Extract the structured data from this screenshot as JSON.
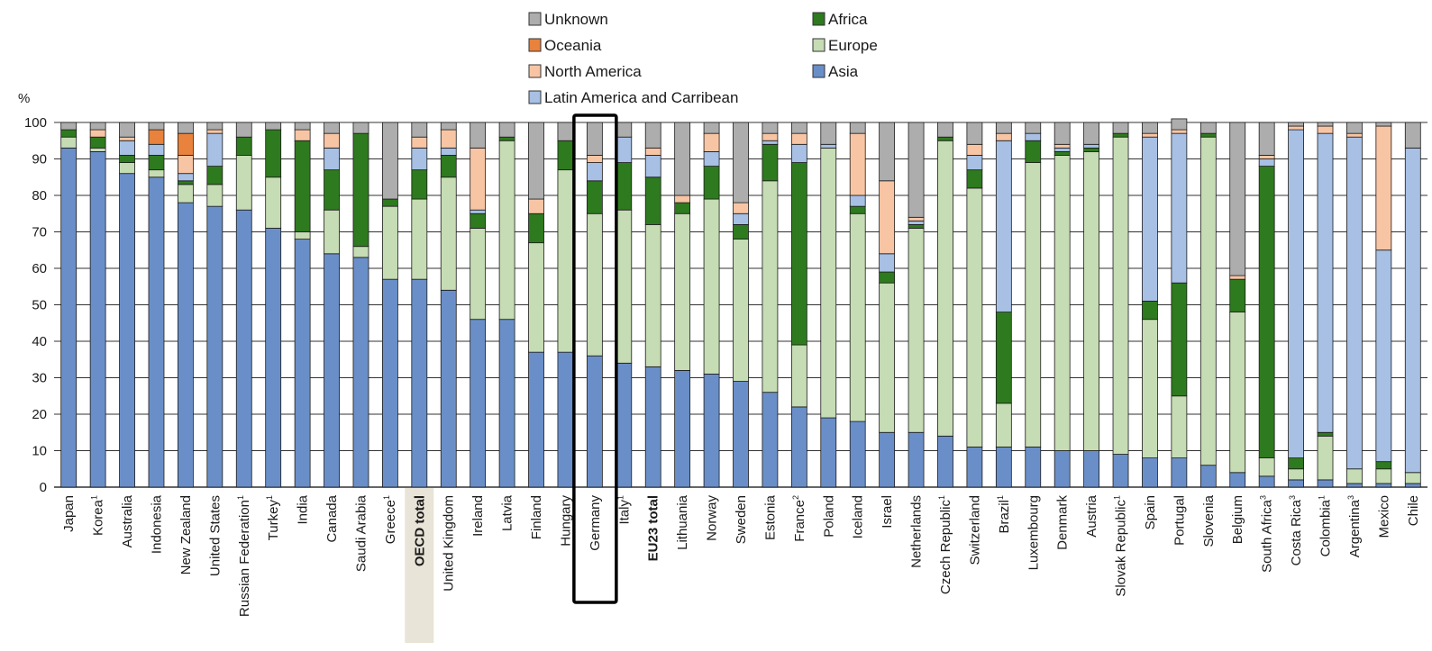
{
  "chart_data": {
    "type": "bar",
    "stacked": true,
    "yunit": "%",
    "ylim": [
      0,
      100
    ],
    "yticks": [
      0,
      10,
      20,
      30,
      40,
      50,
      60,
      70,
      80,
      90,
      100
    ],
    "grid": true,
    "legend_placement": "top-center",
    "highlighted_category": "Germany",
    "shaded_category": "OECD total",
    "categories": [
      {
        "label": "Japan",
        "sup": ""
      },
      {
        "label": "Korea",
        "sup": "1"
      },
      {
        "label": "Australia",
        "sup": ""
      },
      {
        "label": "Indonesia",
        "sup": ""
      },
      {
        "label": "New Zealand",
        "sup": ""
      },
      {
        "label": "United States",
        "sup": ""
      },
      {
        "label": "Russian Federation",
        "sup": "1"
      },
      {
        "label": "Turkey",
        "sup": "1"
      },
      {
        "label": "India",
        "sup": ""
      },
      {
        "label": "Canada",
        "sup": ""
      },
      {
        "label": "Saudi Arabia",
        "sup": ""
      },
      {
        "label": "Greece",
        "sup": "1"
      },
      {
        "label": "OECD total",
        "sup": "",
        "bold": true
      },
      {
        "label": "United Kingdom",
        "sup": ""
      },
      {
        "label": "Ireland",
        "sup": ""
      },
      {
        "label": "Latvia",
        "sup": ""
      },
      {
        "label": "Finland",
        "sup": ""
      },
      {
        "label": "Hungary",
        "sup": ""
      },
      {
        "label": "Germany",
        "sup": ""
      },
      {
        "label": "Italy",
        "sup": "1"
      },
      {
        "label": "EU23 total",
        "sup": "",
        "bold": true
      },
      {
        "label": "Lithuania",
        "sup": ""
      },
      {
        "label": "Norway",
        "sup": ""
      },
      {
        "label": "Sweden",
        "sup": ""
      },
      {
        "label": "Estonia",
        "sup": ""
      },
      {
        "label": "France",
        "sup": "2"
      },
      {
        "label": "Poland",
        "sup": ""
      },
      {
        "label": "Iceland",
        "sup": ""
      },
      {
        "label": "Israel",
        "sup": ""
      },
      {
        "label": "Netherlands",
        "sup": ""
      },
      {
        "label": "Czech Republic",
        "sup": "1"
      },
      {
        "label": "Switzerland",
        "sup": ""
      },
      {
        "label": "Brazil",
        "sup": "1"
      },
      {
        "label": "Luxembourg",
        "sup": ""
      },
      {
        "label": "Denmark",
        "sup": ""
      },
      {
        "label": "Austria",
        "sup": ""
      },
      {
        "label": "Slovak Republic",
        "sup": "1"
      },
      {
        "label": "Spain",
        "sup": ""
      },
      {
        "label": "Portugal",
        "sup": ""
      },
      {
        "label": "Slovenia",
        "sup": ""
      },
      {
        "label": "Belgium",
        "sup": ""
      },
      {
        "label": "South Africa",
        "sup": "3"
      },
      {
        "label": "Costa Rica",
        "sup": "3"
      },
      {
        "label": "Colombia",
        "sup": "1"
      },
      {
        "label": "Argentina",
        "sup": "3"
      },
      {
        "label": "Mexico",
        "sup": ""
      },
      {
        "label": "Chile",
        "sup": ""
      }
    ],
    "series": [
      {
        "name": "Asia",
        "color": "#6a8fc8",
        "values": [
          93,
          92,
          86,
          85,
          78,
          77,
          76,
          71,
          68,
          64,
          63,
          57,
          57,
          54,
          46,
          46,
          37,
          37,
          36,
          34,
          33,
          32,
          31,
          29,
          26,
          22,
          19,
          18,
          15,
          15,
          14,
          11,
          11,
          11,
          10,
          10,
          9,
          8,
          8,
          6,
          4,
          3,
          2,
          2,
          1,
          1,
          1
        ]
      },
      {
        "name": "Europe",
        "color": "#c6dcb4",
        "values": [
          3,
          1,
          3,
          2,
          5,
          6,
          15,
          14,
          2,
          12,
          3,
          20,
          22,
          31,
          25,
          49,
          30,
          50,
          39,
          42,
          39,
          43,
          48,
          39,
          58,
          17,
          74,
          57,
          41,
          56,
          81,
          71,
          12,
          78,
          81,
          82,
          87,
          38,
          17,
          90,
          44,
          5,
          3,
          12,
          4,
          4,
          3
        ]
      },
      {
        "name": "Africa",
        "color": "#2e7a1e",
        "values": [
          2,
          3,
          2,
          4,
          1,
          5,
          5,
          13,
          25,
          11,
          31,
          2,
          8,
          6,
          4,
          1,
          8,
          8,
          9,
          13,
          13,
          3,
          9,
          4,
          10,
          50,
          0,
          2,
          3,
          1,
          1,
          5,
          25,
          6,
          1,
          1,
          1,
          5,
          31,
          1,
          9,
          80,
          3,
          1,
          0,
          2,
          0
        ]
      },
      {
        "name": "Latin America and Carribean",
        "color": "#a7c0e4",
        "values": [
          0,
          0,
          4,
          3,
          2,
          9,
          0,
          0,
          0,
          6,
          0,
          0,
          6,
          2,
          1,
          0,
          0,
          0,
          5,
          7,
          6,
          0,
          4,
          3,
          1,
          5,
          1,
          3,
          5,
          1,
          0,
          4,
          47,
          2,
          1,
          1,
          0,
          45,
          41,
          0,
          0,
          2,
          90,
          82,
          91,
          58,
          89
        ]
      },
      {
        "name": "North America",
        "color": "#f8c5a4",
        "values": [
          0,
          2,
          1,
          0,
          5,
          1,
          0,
          0,
          3,
          4,
          0,
          0,
          3,
          5,
          17,
          0,
          4,
          0,
          2,
          0,
          2,
          2,
          5,
          3,
          2,
          3,
          0,
          17,
          20,
          1,
          0,
          3,
          2,
          0,
          1,
          0,
          0,
          1,
          1,
          0,
          1,
          1,
          1,
          2,
          1,
          34,
          0
        ]
      },
      {
        "name": "Oceania",
        "color": "#e8823c",
        "values": [
          0,
          0,
          0,
          4,
          6,
          0,
          0,
          0,
          0,
          0,
          0,
          0,
          0,
          0,
          0,
          0,
          0,
          0,
          0,
          0,
          0,
          0,
          0,
          0,
          0,
          0,
          0,
          0,
          0,
          0,
          0,
          0,
          0,
          0,
          0,
          0,
          0,
          0,
          0,
          0,
          0,
          0,
          0,
          0,
          0,
          0,
          0
        ]
      },
      {
        "name": "Unknown",
        "color": "#adadad",
        "values": [
          2,
          2,
          4,
          2,
          3,
          2,
          4,
          2,
          2,
          3,
          3,
          21,
          4,
          2,
          7,
          4,
          21,
          5,
          9,
          4,
          7,
          20,
          3,
          22,
          3,
          3,
          6,
          3,
          16,
          26,
          4,
          6,
          3,
          3,
          6,
          6,
          3,
          3,
          3,
          3,
          42,
          9,
          1,
          1,
          3,
          1,
          7
        ]
      }
    ],
    "legend": {
      "left": [
        "Unknown",
        "Oceania",
        "North America",
        "Latin America and Carribean"
      ],
      "right": [
        "Africa",
        "Europe",
        "Asia"
      ]
    }
  }
}
